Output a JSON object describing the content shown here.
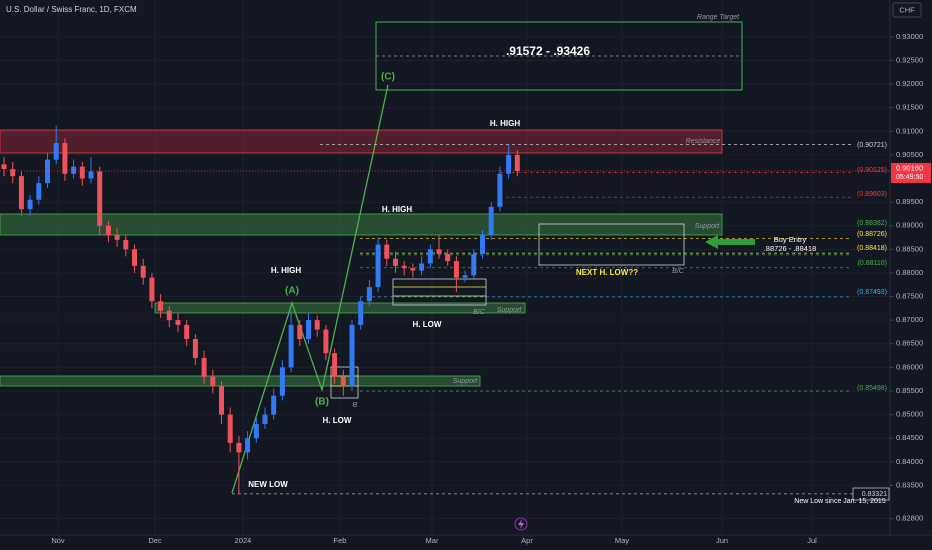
{
  "chart_data": {
    "type": "candlestick",
    "title": "U.S. Dollar / Swiss Franc, 1D, FXCM",
    "currency": "CHF",
    "up_color": "#3179f5",
    "down_color": "#f0525c",
    "grid": true,
    "ylim": [
      0.8245,
      0.9378
    ],
    "yticks": [
      {
        "value": 0.93,
        "label": "0.93000"
      },
      {
        "value": 0.925,
        "label": "0.92500"
      },
      {
        "value": 0.92,
        "label": "0.92000"
      },
      {
        "value": 0.915,
        "label": "0.91500"
      },
      {
        "value": 0.91,
        "label": "0.91000"
      },
      {
        "value": 0.905,
        "label": "0.90500"
      },
      {
        "value": 0.895,
        "label": "0.89500"
      },
      {
        "value": 0.89,
        "label": "0.89000"
      },
      {
        "value": 0.885,
        "label": "0.88500"
      },
      {
        "value": 0.88,
        "label": "0.88000"
      },
      {
        "value": 0.875,
        "label": "0.87500"
      },
      {
        "value": 0.87,
        "label": "0.87000"
      },
      {
        "value": 0.865,
        "label": "0.86500"
      },
      {
        "value": 0.86,
        "label": "0.86000"
      },
      {
        "value": 0.855,
        "label": "0.85500"
      },
      {
        "value": 0.85,
        "label": "0.85000"
      },
      {
        "value": 0.845,
        "label": "0.84500"
      },
      {
        "value": 0.84,
        "label": "0.84000"
      },
      {
        "value": 0.835,
        "label": "0.83500"
      },
      {
        "value": 0.828,
        "label": "0.82800"
      }
    ],
    "xlabels": [
      "Nov",
      "Dec",
      "2024",
      "Feb",
      "Mar",
      "Apr",
      "May",
      "Jun",
      "Jul"
    ],
    "open": [
      0.903,
      0.902,
      0.9005,
      0.8935,
      0.8955,
      0.899,
      0.904,
      0.9075,
      0.901,
      0.9025,
      0.9,
      0.9015,
      0.89,
      0.888,
      0.887,
      0.885,
      0.8815,
      0.879,
      0.874,
      0.872,
      0.87,
      0.869,
      0.866,
      0.862,
      0.858,
      0.856,
      0.85,
      0.844,
      0.842,
      0.845,
      0.848,
      0.85,
      0.854,
      0.86,
      0.869,
      0.866,
      0.87,
      0.868,
      0.863,
      0.858,
      0.856,
      0.869,
      0.874,
      0.877,
      0.886,
      0.883,
      0.8815,
      0.881,
      0.8805,
      0.882,
      0.885,
      0.884,
      0.8825,
      0.879,
      0.8795,
      0.884,
      0.888,
      0.894,
      0.901,
      0.905
    ],
    "high": [
      0.9045,
      0.9035,
      0.9015,
      0.8965,
      0.9005,
      0.9055,
      0.9112,
      0.9085,
      0.904,
      0.9035,
      0.9045,
      0.9025,
      0.891,
      0.8895,
      0.888,
      0.886,
      0.883,
      0.88,
      0.8755,
      0.873,
      0.8715,
      0.87,
      0.867,
      0.8635,
      0.8595,
      0.857,
      0.8515,
      0.8455,
      0.8465,
      0.8495,
      0.8515,
      0.8555,
      0.8615,
      0.872,
      0.87,
      0.8715,
      0.871,
      0.869,
      0.864,
      0.8595,
      0.87,
      0.875,
      0.8785,
      0.8875,
      0.887,
      0.8845,
      0.8825,
      0.882,
      0.8835,
      0.886,
      0.888,
      0.885,
      0.8835,
      0.8805,
      0.885,
      0.889,
      0.895,
      0.9025,
      0.9072,
      0.906
    ],
    "low": [
      0.9005,
      0.899,
      0.892,
      0.892,
      0.8945,
      0.898,
      0.903,
      0.8995,
      0.9,
      0.8985,
      0.899,
      0.888,
      0.8865,
      0.8855,
      0.8835,
      0.88,
      0.8775,
      0.8725,
      0.8705,
      0.8685,
      0.8675,
      0.8645,
      0.8605,
      0.8565,
      0.8545,
      0.848,
      0.842,
      0.8332,
      0.8405,
      0.844,
      0.847,
      0.849,
      0.853,
      0.859,
      0.8645,
      0.865,
      0.8665,
      0.8615,
      0.8565,
      0.854,
      0.855,
      0.868,
      0.873,
      0.876,
      0.8815,
      0.88,
      0.8795,
      0.879,
      0.8795,
      0.881,
      0.883,
      0.8815,
      0.876,
      0.878,
      0.8785,
      0.883,
      0.887,
      0.893,
      0.9,
      0.9005
    ],
    "close": [
      0.902,
      0.9005,
      0.8935,
      0.8955,
      0.899,
      0.904,
      0.9075,
      0.901,
      0.9025,
      0.9,
      0.9015,
      0.89,
      0.888,
      0.887,
      0.885,
      0.8815,
      0.879,
      0.874,
      0.872,
      0.87,
      0.869,
      0.866,
      0.862,
      0.858,
      0.856,
      0.85,
      0.844,
      0.842,
      0.845,
      0.848,
      0.85,
      0.854,
      0.86,
      0.869,
      0.866,
      0.87,
      0.868,
      0.863,
      0.858,
      0.856,
      0.869,
      0.874,
      0.877,
      0.886,
      0.883,
      0.8815,
      0.881,
      0.8805,
      0.882,
      0.885,
      0.884,
      0.8825,
      0.879,
      0.8795,
      0.884,
      0.888,
      0.894,
      0.901,
      0.905,
      0.9016
    ],
    "current_price": {
      "value": 0.9016,
      "label": "0.90160"
    },
    "countdown": "05:49:50",
    "levels": [
      {
        "value": 0.90721,
        "label": "(0.90721)",
        "color": "#d1d4dc"
      },
      {
        "value": 0.90125,
        "label": "(0.90125)",
        "color": "#f23645"
      },
      {
        "value": 0.89603,
        "label": "(0.89603)",
        "color": "#f23645"
      },
      {
        "value": 0.88382,
        "label": "(0.88382)",
        "color": "#4caf50"
      },
      {
        "value": 0.88726,
        "label": "(0.88726)",
        "color": "#ffeb3b"
      },
      {
        "value": 0.88418,
        "label": "(0.88418)",
        "color": "#ffeb3b"
      },
      {
        "value": 0.8811,
        "label": "(0.88110)",
        "color": "#4caf50"
      },
      {
        "value": 0.87493,
        "label": "(0.87493)",
        "color": "#29b6f6"
      },
      {
        "value": 0.85498,
        "label": "(0.85498)",
        "color": "#4caf50"
      },
      {
        "value": 0.83321,
        "label": "0.83321",
        "color": "#d1d4dc"
      }
    ],
    "annotations": [
      "Range Target",
      ".91572 - .93426",
      "(C)",
      "H. HIGH",
      "H. HIGH",
      "H. HIGH",
      "(A)",
      "(B)",
      "H. LOW",
      "H. LOW",
      "NEW LOW",
      "Resistance",
      "Support",
      "Support",
      "Support",
      "B/C",
      "B/C",
      "B",
      "NEXT H. LOW??",
      "Buy Entry",
      ".88726 - .88418",
      "New Low since Jan. 15, 2015"
    ]
  }
}
